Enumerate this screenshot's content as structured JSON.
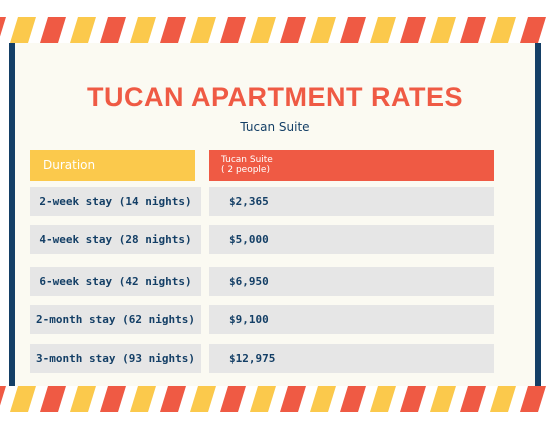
{
  "title": "TUCAN APARTMENT RATES",
  "subtitle": "Tucan Suite",
  "table": {
    "duration_header": "Duration",
    "suite_header_line1": "Tucan Suite",
    "suite_header_line2": "( 2 people)",
    "rows": [
      {
        "duration": "2-week stay (14 nights)",
        "price": "$2,365"
      },
      {
        "duration": "4-week stay (28 nights)",
        "price": "$5,000"
      },
      {
        "duration": "6-week stay (42 nights)",
        "price": "$6,950"
      },
      {
        "duration": "2-month stay (62 nights)",
        "price": "$9,100"
      },
      {
        "duration": "3-month stay (93 nights)",
        "price": "$12,975"
      }
    ]
  },
  "colors": {
    "red": "#ef5a44",
    "yellow": "#fbc94c",
    "navy": "#143f66",
    "background": "#fbfaf2",
    "row": "#e6e6e6"
  }
}
